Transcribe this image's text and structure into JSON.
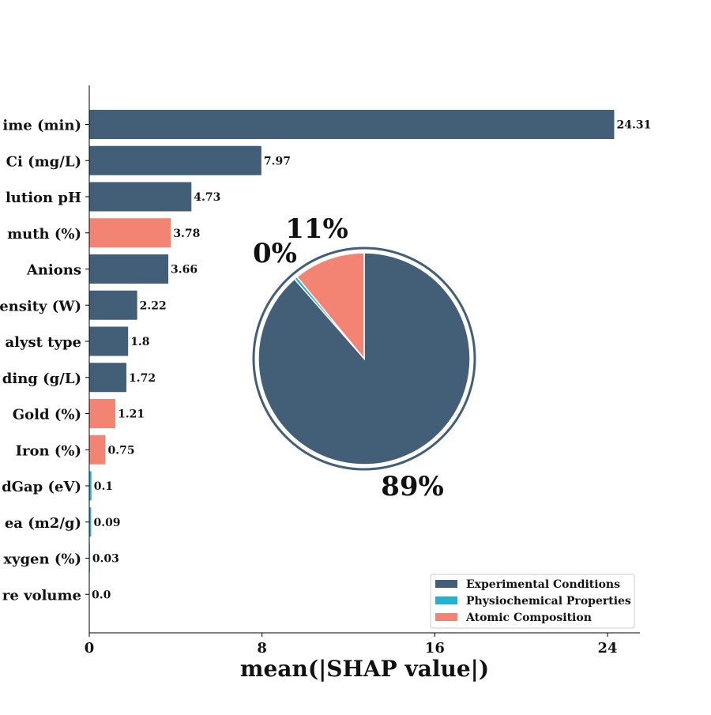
{
  "chart_data": [
    {
      "type": "bar",
      "orientation": "horizontal",
      "categories": [
        "ime (min)",
        "Ci (mg/L)",
        "lution pH",
        "muth (%)",
        "Anions",
        "ensity (W)",
        "alyst type",
        "ding (g/L)",
        "Gold (%)",
        "Iron (%)",
        "dGap (eV)",
        "ea (m2/g)",
        "xygen (%)",
        "re volume"
      ],
      "values": [
        24.31,
        7.97,
        4.73,
        3.78,
        3.66,
        2.22,
        1.8,
        1.72,
        1.21,
        0.75,
        0.1,
        0.09,
        0.03,
        0.0
      ],
      "value_labels": [
        "24.31",
        "7.97",
        "4.73",
        "3.78",
        "3.66",
        "2.22",
        "1.8",
        "1.72",
        "1.21",
        "0.75",
        "0.1",
        "0.09",
        "0.03",
        "0.0"
      ],
      "groups": [
        "Experimental Conditions",
        "Experimental Conditions",
        "Experimental Conditions",
        "Atomic Composition",
        "Experimental Conditions",
        "Experimental Conditions",
        "Experimental Conditions",
        "Experimental Conditions",
        "Atomic Composition",
        "Atomic Composition",
        "Physiochemical Properties",
        "Physiochemical Properties",
        "Physiochemical Properties",
        "Physiochemical Properties"
      ],
      "xlabel": "mean(|SHAP value|)",
      "xlim": [
        0,
        25.5
      ],
      "xticks": [
        "0",
        "8",
        "16",
        "24"
      ],
      "xtick_values": [
        0,
        8,
        16,
        24
      ],
      "grid": false
    },
    {
      "type": "pie",
      "slices": [
        {
          "group": "Experimental Conditions",
          "value": 89,
          "label": "89%"
        },
        {
          "group": "Physiochemical Properties",
          "value": 0.5,
          "label": "0%"
        },
        {
          "group": "Atomic Composition",
          "value": 11,
          "label": "11%"
        }
      ]
    }
  ],
  "legend": {
    "placement": "bottom-right",
    "entries": [
      {
        "name": "Experimental Conditions",
        "color": "#425f77"
      },
      {
        "name": "Physiochemical Properties",
        "color": "#1fb3d4"
      },
      {
        "name": "Atomic Composition",
        "color": "#f38372"
      }
    ]
  }
}
